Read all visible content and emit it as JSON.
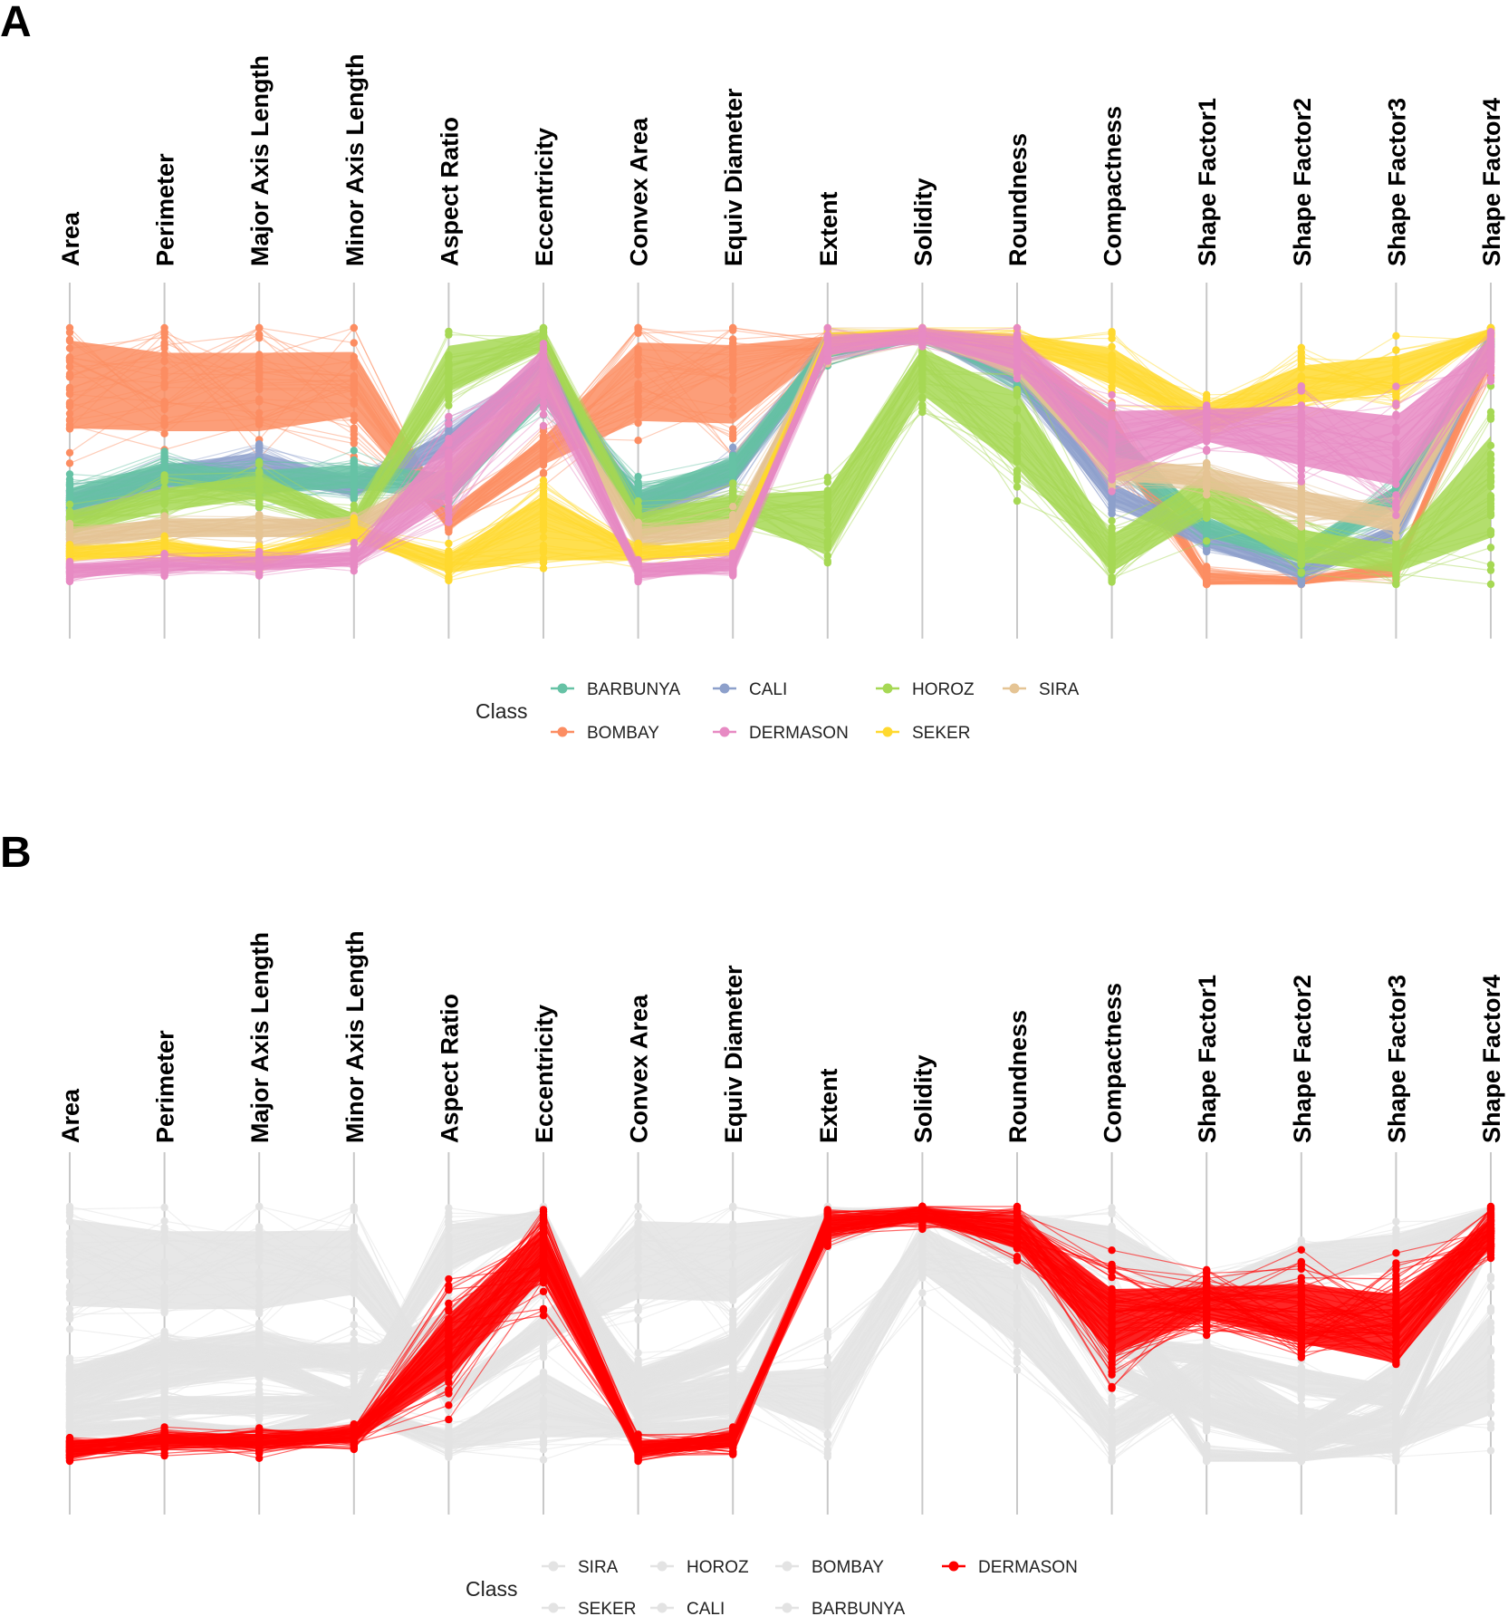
{
  "chart_data": [
    {
      "panel": "A",
      "type": "parallel-coordinates",
      "axes": [
        "Area",
        "Perimeter",
        "Major Axis Length",
        "Minor Axis Length",
        "Aspect Ratio",
        "Eccentricity",
        "Convex Area",
        "Equiv Diameter",
        "Extent",
        "Solidity",
        "Roundness",
        "Compactness",
        "Shape Factor1",
        "Shape Factor2",
        "Shape Factor3",
        "Shape Factor4"
      ],
      "yrange": [
        0,
        1
      ],
      "legend": {
        "title": "Class",
        "position": "bottom",
        "items": [
          {
            "name": "BARBUNYA",
            "color": "#66c2a5"
          },
          {
            "name": "CALI",
            "color": "#8da0cb"
          },
          {
            "name": "HOROZ",
            "color": "#a6d854"
          },
          {
            "name": "SIRA",
            "color": "#e5c494"
          },
          {
            "name": "BOMBAY",
            "color": "#fc8d62"
          },
          {
            "name": "DERMASON",
            "color": "#e78ac3"
          },
          {
            "name": "SEKER",
            "color": "#ffd92f"
          }
        ]
      },
      "series": [
        {
          "name": "BOMBAY",
          "color": "#fc8d62",
          "center": [
            0.78,
            0.75,
            0.75,
            0.78,
            0.25,
            0.52,
            0.79,
            0.78,
            0.94,
            0.97,
            0.88,
            0.6,
            0.02,
            0.01,
            0.06,
            0.91
          ],
          "spread": [
            0.19,
            0.17,
            0.17,
            0.14,
            0.04,
            0.06,
            0.17,
            0.17,
            0.03,
            0.02,
            0.05,
            0.08,
            0.03,
            0.02,
            0.03,
            0.05
          ]
        },
        {
          "name": "CALI",
          "color": "#8da0cb",
          "center": [
            0.3,
            0.42,
            0.46,
            0.38,
            0.55,
            0.86,
            0.3,
            0.43,
            0.92,
            0.97,
            0.82,
            0.35,
            0.18,
            0.05,
            0.2,
            0.93
          ],
          "spread": [
            0.06,
            0.05,
            0.06,
            0.04,
            0.05,
            0.03,
            0.06,
            0.05,
            0.04,
            0.02,
            0.05,
            0.05,
            0.04,
            0.03,
            0.04,
            0.04
          ]
        },
        {
          "name": "BARBUNYA",
          "color": "#66c2a5",
          "center": [
            0.33,
            0.43,
            0.4,
            0.42,
            0.38,
            0.77,
            0.32,
            0.45,
            0.92,
            0.97,
            0.84,
            0.55,
            0.22,
            0.12,
            0.34,
            0.96
          ],
          "spread": [
            0.05,
            0.05,
            0.05,
            0.05,
            0.06,
            0.07,
            0.05,
            0.05,
            0.04,
            0.02,
            0.05,
            0.08,
            0.04,
            0.04,
            0.05,
            0.03
          ]
        },
        {
          "name": "HOROZ",
          "color": "#a6d854",
          "center": [
            0.24,
            0.33,
            0.38,
            0.24,
            0.84,
            0.95,
            0.23,
            0.3,
            0.24,
            0.83,
            0.6,
            0.12,
            0.35,
            0.15,
            0.1,
            0.38
          ],
          "spread": [
            0.05,
            0.05,
            0.05,
            0.04,
            0.1,
            0.04,
            0.05,
            0.05,
            0.14,
            0.1,
            0.16,
            0.08,
            0.09,
            0.07,
            0.06,
            0.22
          ]
        },
        {
          "name": "SIRA",
          "color": "#e5c494",
          "center": [
            0.18,
            0.22,
            0.22,
            0.22,
            0.42,
            0.8,
            0.18,
            0.22,
            0.93,
            0.97,
            0.86,
            0.45,
            0.42,
            0.32,
            0.25,
            0.93
          ],
          "spread": [
            0.04,
            0.04,
            0.04,
            0.04,
            0.05,
            0.04,
            0.04,
            0.04,
            0.04,
            0.02,
            0.05,
            0.05,
            0.04,
            0.05,
            0.05,
            0.04
          ]
        },
        {
          "name": "SEKER",
          "color": "#ffd92f",
          "center": [
            0.12,
            0.14,
            0.1,
            0.2,
            0.08,
            0.22,
            0.12,
            0.14,
            0.95,
            0.98,
            0.95,
            0.85,
            0.65,
            0.78,
            0.82,
            0.98
          ],
          "spread": [
            0.03,
            0.03,
            0.03,
            0.03,
            0.04,
            0.14,
            0.03,
            0.03,
            0.03,
            0.02,
            0.03,
            0.08,
            0.06,
            0.08,
            0.08,
            0.02
          ]
        },
        {
          "name": "DERMASON",
          "color": "#e78ac3",
          "center": [
            0.05,
            0.08,
            0.08,
            0.1,
            0.45,
            0.82,
            0.05,
            0.08,
            0.93,
            0.97,
            0.9,
            0.55,
            0.62,
            0.58,
            0.52,
            0.9
          ],
          "spread": [
            0.03,
            0.03,
            0.03,
            0.03,
            0.14,
            0.11,
            0.03,
            0.03,
            0.04,
            0.03,
            0.07,
            0.14,
            0.07,
            0.13,
            0.15,
            0.06
          ]
        }
      ]
    },
    {
      "panel": "B",
      "type": "parallel-coordinates",
      "axes": [
        "Area",
        "Perimeter",
        "Major Axis Length",
        "Minor Axis Length",
        "Aspect Ratio",
        "Eccentricity",
        "Convex Area",
        "Equiv Diameter",
        "Extent",
        "Solidity",
        "Roundness",
        "Compactness",
        "Shape Factor1",
        "Shape Factor2",
        "Shape Factor3",
        "Shape Factor4"
      ],
      "yrange": [
        0,
        1
      ],
      "highlight": "DERMASON",
      "legend": {
        "title": "Class",
        "position": "bottom",
        "items": [
          {
            "name": "SIRA",
            "color": "#e3e3e3"
          },
          {
            "name": "HOROZ",
            "color": "#e3e3e3"
          },
          {
            "name": "BOMBAY",
            "color": "#e3e3e3"
          },
          {
            "name": "DERMASON",
            "color": "#ff0000"
          },
          {
            "name": "SEKER",
            "color": "#e3e3e3"
          },
          {
            "name": "CALI",
            "color": "#e3e3e3"
          },
          {
            "name": "BARBUNYA",
            "color": "#e3e3e3"
          }
        ]
      }
    }
  ]
}
